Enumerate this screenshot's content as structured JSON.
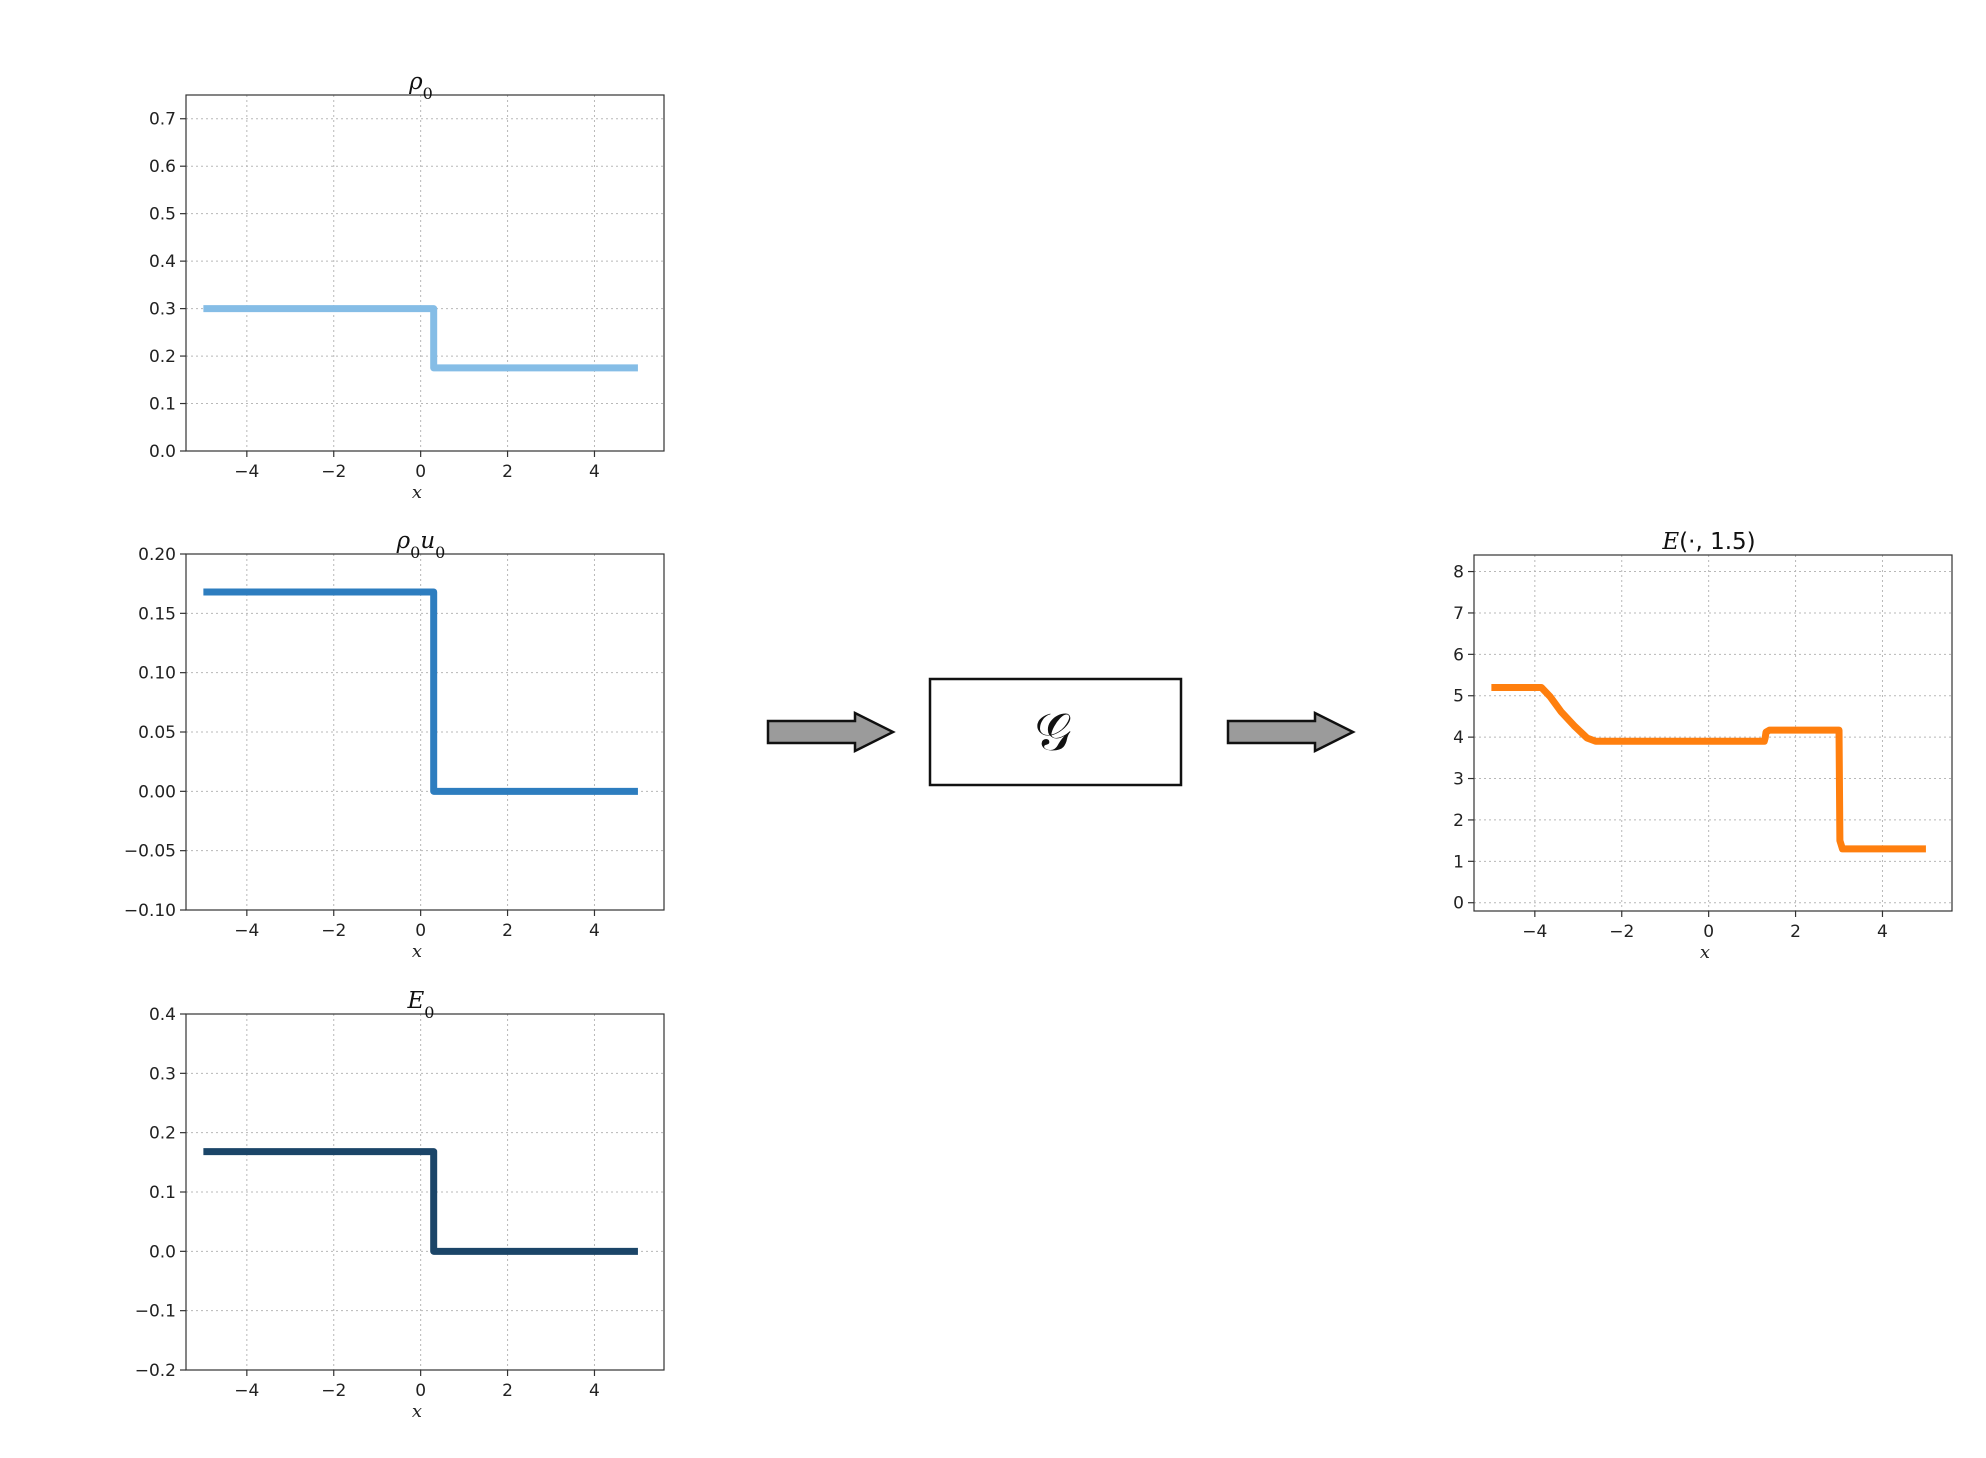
{
  "figure": {
    "operator": {
      "symbol": "𝒢"
    }
  },
  "chart_data": [
    {
      "type": "line",
      "title": "ρ0",
      "title_parts": [
        {
          "t": "ρ",
          "sub": false
        },
        {
          "t": "0",
          "sub": true
        }
      ],
      "xlabel": "x",
      "xlim": [
        -5.4,
        5.6
      ],
      "ylim": [
        0.0,
        0.75
      ],
      "xticks": [
        -4,
        -2,
        0,
        2,
        4
      ],
      "xtick_labels": [
        "−4",
        "−2",
        "0",
        "2",
        "4"
      ],
      "yticks": [
        0.0,
        0.1,
        0.2,
        0.3,
        0.4,
        0.5,
        0.6,
        0.7
      ],
      "ytick_labels": [
        "0.0",
        "0.1",
        "0.2",
        "0.3",
        "0.4",
        "0.5",
        "0.6",
        "0.7"
      ],
      "grid": true,
      "color": "#85bde6",
      "series": [
        {
          "x": [
            -5,
            0.3,
            0.3,
            5
          ],
          "y": [
            0.3,
            0.3,
            0.175,
            0.175
          ]
        }
      ]
    },
    {
      "type": "line",
      "title": "ρ0u0",
      "title_parts": [
        {
          "t": "ρ",
          "sub": false
        },
        {
          "t": "0",
          "sub": true
        },
        {
          "t": "u",
          "sub": false
        },
        {
          "t": "0",
          "sub": true
        }
      ],
      "xlabel": "x",
      "xlim": [
        -5.4,
        5.6
      ],
      "ylim": [
        -0.1,
        0.2
      ],
      "xticks": [
        -4,
        -2,
        0,
        2,
        4
      ],
      "xtick_labels": [
        "−4",
        "−2",
        "0",
        "2",
        "4"
      ],
      "yticks": [
        -0.1,
        -0.05,
        0.0,
        0.05,
        0.1,
        0.15,
        0.2
      ],
      "ytick_labels": [
        "−0.10",
        "−0.05",
        "0.00",
        "0.05",
        "0.10",
        "0.15",
        "0.20"
      ],
      "grid": true,
      "color": "#2d7dbf",
      "series": [
        {
          "x": [
            -5,
            0.3,
            0.3,
            5
          ],
          "y": [
            0.168,
            0.168,
            0.0,
            0.0
          ]
        }
      ]
    },
    {
      "type": "line",
      "title": "E0",
      "title_parts": [
        {
          "t": "E",
          "sub": false
        },
        {
          "t": "0",
          "sub": true
        }
      ],
      "xlabel": "x",
      "xlim": [
        -5.4,
        5.6
      ],
      "ylim": [
        -0.2,
        0.4
      ],
      "xticks": [
        -4,
        -2,
        0,
        2,
        4
      ],
      "xtick_labels": [
        "−4",
        "−2",
        "0",
        "2",
        "4"
      ],
      "yticks": [
        -0.2,
        -0.1,
        0.0,
        0.1,
        0.2,
        0.3,
        0.4
      ],
      "ytick_labels": [
        "−0.2",
        "−0.1",
        "0.0",
        "0.1",
        "0.2",
        "0.3",
        "0.4"
      ],
      "grid": true,
      "color": "#1b4568",
      "series": [
        {
          "x": [
            -5,
            0.3,
            0.3,
            5
          ],
          "y": [
            0.168,
            0.168,
            0.0,
            0.0
          ]
        }
      ]
    },
    {
      "type": "line",
      "title": "E(·, 1.5)",
      "title_parts": [
        {
          "t": "E",
          "sub": false
        },
        {
          "t": "(·, 1.5)",
          "sub": false,
          "upright": true
        }
      ],
      "xlabel": "x",
      "xlim": [
        -5.4,
        5.6
      ],
      "ylim": [
        -0.2,
        8.4
      ],
      "xticks": [
        -4,
        -2,
        0,
        2,
        4
      ],
      "xtick_labels": [
        "−4",
        "−2",
        "0",
        "2",
        "4"
      ],
      "yticks": [
        0,
        1,
        2,
        3,
        4,
        5,
        6,
        7,
        8
      ],
      "ytick_labels": [
        "0",
        "1",
        "2",
        "3",
        "4",
        "5",
        "6",
        "7",
        "8"
      ],
      "grid": true,
      "color": "#ff7f0e",
      "series": [
        {
          "x": [
            -5,
            -3.85,
            -3.65,
            -3.4,
            -3.1,
            -2.8,
            -2.6,
            -1.5,
            0,
            1.28,
            1.3,
            1.32,
            1.4,
            1.5,
            3.0,
            3.02,
            3.08,
            5
          ],
          "y": [
            5.2,
            5.2,
            4.98,
            4.62,
            4.28,
            3.98,
            3.9,
            3.9,
            3.9,
            3.9,
            3.98,
            4.12,
            4.17,
            4.17,
            4.17,
            1.5,
            1.3,
            1.3
          ]
        }
      ]
    }
  ]
}
